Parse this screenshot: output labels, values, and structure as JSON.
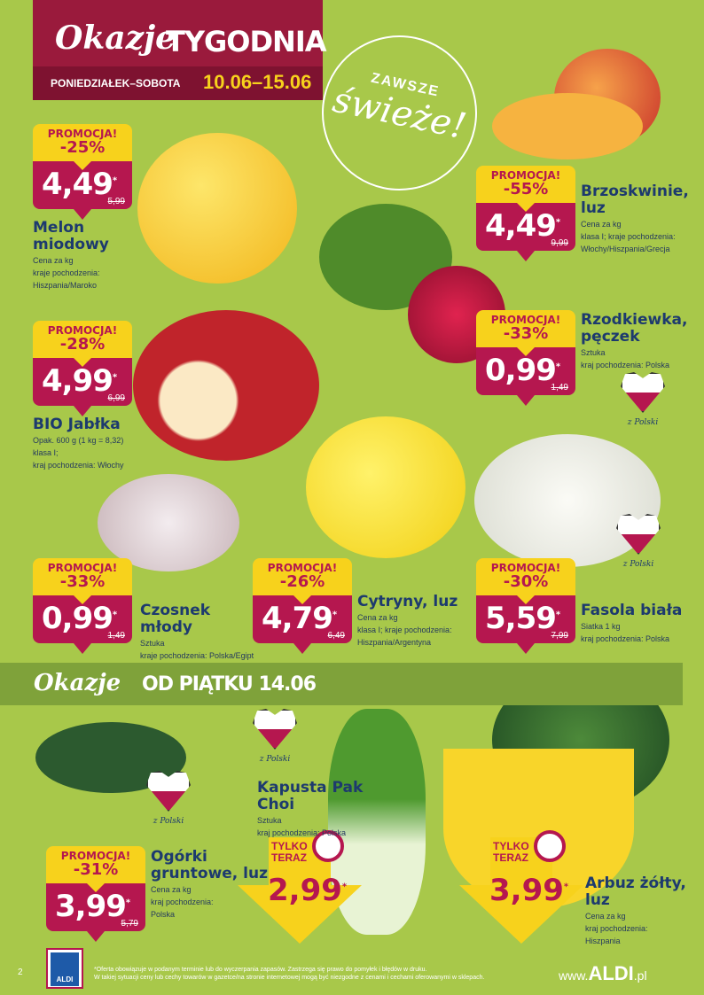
{
  "header": {
    "title_italic": "Okazje",
    "title_bold": "TYGODNIA",
    "days": "PONIEDZIAŁEK–SOBOTA",
    "dates": "10.06–15.06"
  },
  "badge": {
    "line1": "ZAWSZE",
    "line2": "świeże!"
  },
  "section2": {
    "title_italic": "Okazje",
    "title_bold": "OD PIĄTKU 14.06"
  },
  "colors": {
    "background": "#a8c84a",
    "header": "#9a1a3c",
    "price": "#b5174f",
    "promo": "#f7d21c",
    "text": "#1d3a6e"
  },
  "products": [
    {
      "promo": "PROMOCJA!",
      "discount": "-25%",
      "price": "4,49",
      "star": "*",
      "old": "5,99",
      "name": "Melon miodowy",
      "lines": [
        "Cena za kg",
        "kraje pochodzenia:",
        "Hiszpania/Maroko"
      ]
    },
    {
      "promo": "PROMOCJA!",
      "discount": "-55%",
      "price": "4,49",
      "star": "*",
      "old": "9,99",
      "name": "Brzoskwinie, luz",
      "lines": [
        "Cena za kg",
        "klasa I; kraje pochodzenia:",
        "Włochy/Hiszpania/Grecja"
      ]
    },
    {
      "promo": "PROMOCJA!",
      "discount": "-28%",
      "price": "4,99",
      "star": "*",
      "old": "6,99",
      "name": "BIO Jabłka",
      "lines": [
        "Opak. 600 g (1 kg = 8,32)",
        "klasa I;",
        "kraj pochodzenia: Włochy"
      ]
    },
    {
      "promo": "PROMOCJA!",
      "discount": "-33%",
      "price": "0,99",
      "star": "*",
      "old": "1,49",
      "name": "Rzodkiewka, pęczek",
      "lines": [
        "Sztuka",
        "kraj pochodzenia: Polska"
      ]
    },
    {
      "promo": "PROMOCJA!",
      "discount": "-33%",
      "price": "0,99",
      "star": "*",
      "old": "1,49",
      "name": "Czosnek młody",
      "lines": [
        "Sztuka",
        "kraje pochodzenia: Polska/Egipt"
      ]
    },
    {
      "promo": "PROMOCJA!",
      "discount": "-26%",
      "price": "4,79",
      "star": "*",
      "old": "6,49",
      "name": "Cytryny, luz",
      "lines": [
        "Cena za kg",
        "klasa I; kraje pochodzenia:",
        "Hiszpania/Argentyna"
      ]
    },
    {
      "promo": "PROMOCJA!",
      "discount": "-30%",
      "price": "5,59",
      "star": "*",
      "old": "7,99",
      "name": "Fasola biała",
      "lines": [
        "Siatka 1 kg",
        "kraj pochodzenia: Polska"
      ]
    },
    {
      "promo": "PROMOCJA!",
      "discount": "-31%",
      "price": "3,99",
      "star": "*",
      "old": "5,79",
      "name": "Ogórki gruntowe, luz",
      "lines": [
        "Cena za kg",
        "kraj pochodzenia:",
        "Polska"
      ]
    }
  ],
  "only_now": [
    {
      "label1": "TYLKO",
      "label2": "TERAZ",
      "price": "2,99",
      "star": "*",
      "name": "Kapusta Pak Choi",
      "lines": [
        "Sztuka",
        "kraj pochodzenia: Polska"
      ]
    },
    {
      "label1": "TYLKO",
      "label2": "TERAZ",
      "price": "3,99",
      "star": "*",
      "name": "Arbuz żółty, luz",
      "lines": [
        "Cena za kg",
        "kraj pochodzenia:",
        "Hiszpania"
      ]
    }
  ],
  "heart_label": "z Polski",
  "footer": {
    "page": "2",
    "logo": "ALDI",
    "disclaimer1": "*Oferta obowiązuje w podanym terminie lub do wyczerpania zapasów. Zastrzega się prawo do pomyłek i błędów w druku.",
    "disclaimer2": "W takiej sytuacji ceny lub cechy towarów w gazetce/na stronie internetowej mogą być niezgodne z cenami i cechami oferowanymi w sklepach.",
    "www": "www.",
    "brand": "ALDI",
    ".pl": ".pl",
    "tld": ".pl"
  }
}
